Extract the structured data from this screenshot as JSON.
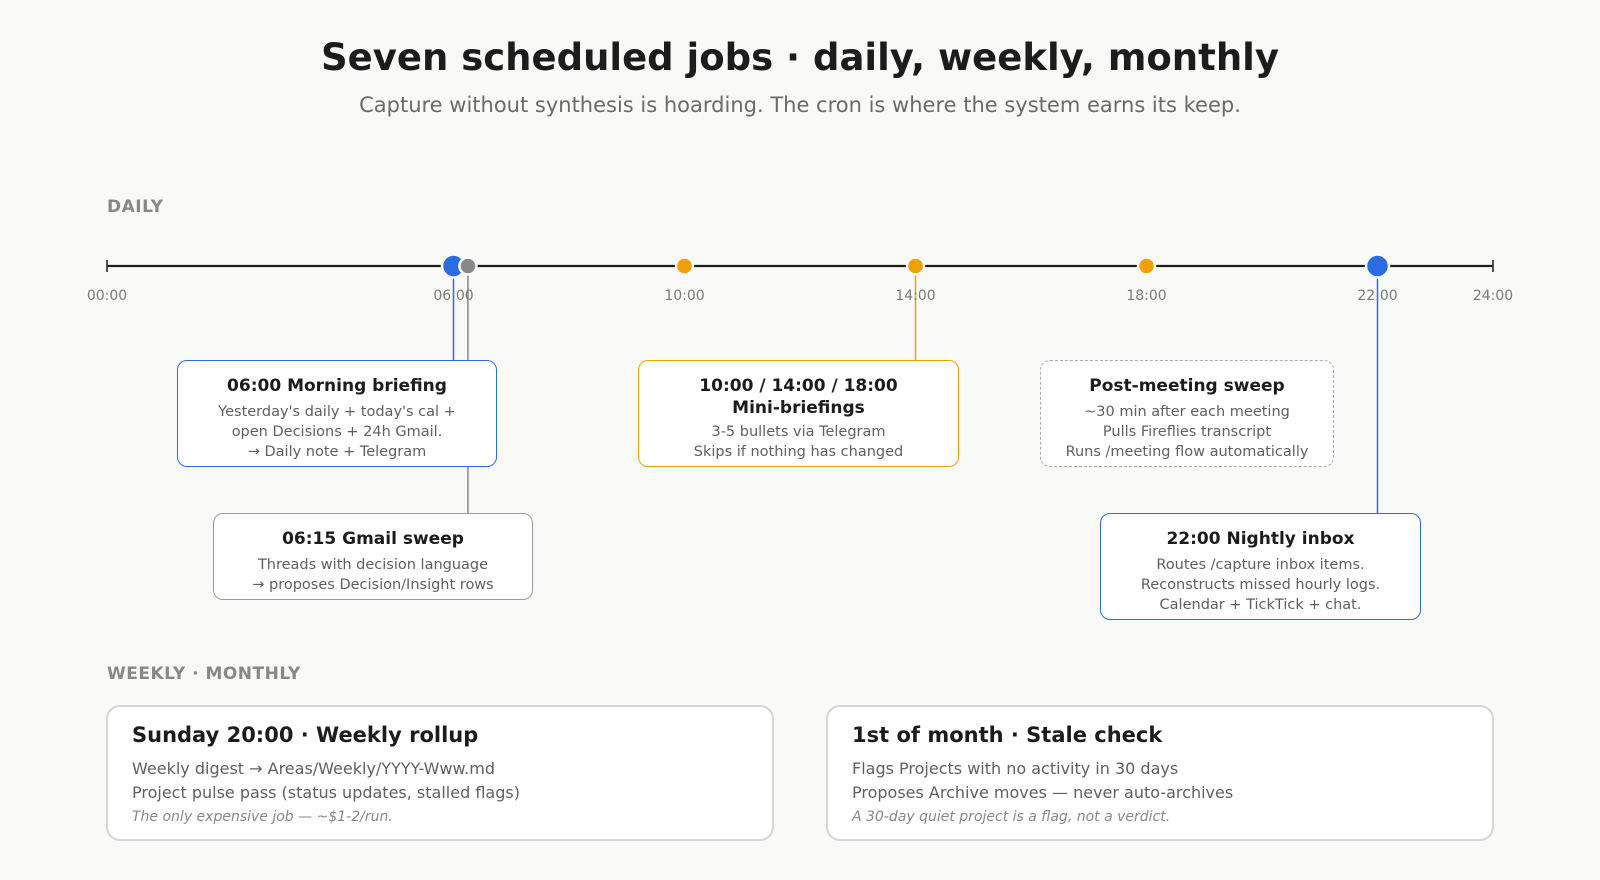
{
  "title": "Seven scheduled jobs · daily, weekly, monthly",
  "subtitle": "Capture without synthesis is hoarding. The cron is where the system earns its keep.",
  "sections": {
    "daily": "DAILY",
    "weekly_monthly": "WEEKLY · MONTHLY"
  },
  "colors": {
    "blue": "#2b6de0",
    "orange": "#f0a000",
    "gray": "#888888",
    "dashed": "#aaaaaa"
  },
  "timeline": {
    "ticks": [
      "00:00",
      "06:00",
      "10:00",
      "14:00",
      "18:00",
      "22:00",
      "24:00"
    ],
    "markers": [
      {
        "time": "06:00",
        "kind": "major",
        "color": "blue"
      },
      {
        "time": "06:15",
        "kind": "minor",
        "color": "gray"
      },
      {
        "time": "10:00",
        "kind": "minor",
        "color": "orange"
      },
      {
        "time": "14:00",
        "kind": "minor",
        "color": "orange"
      },
      {
        "time": "18:00",
        "kind": "minor",
        "color": "orange"
      },
      {
        "time": "22:00",
        "kind": "major",
        "color": "blue"
      }
    ]
  },
  "daily_jobs": [
    {
      "title": "06:00 Morning briefing",
      "lines": [
        "Yesterday's daily + today's cal +",
        "open Decisions + 24h Gmail.",
        "→ Daily note + Telegram"
      ]
    },
    {
      "title": "06:15 Gmail sweep",
      "lines": [
        "Threads with decision language",
        "→ proposes Decision/Insight rows"
      ]
    },
    {
      "title": "10:00 / 14:00 / 18:00\nMini-briefings",
      "lines": [
        "3-5 bullets via Telegram",
        "Skips if nothing has changed"
      ]
    },
    {
      "title": "Post-meeting sweep",
      "lines": [
        "~30 min after each meeting",
        "Pulls Fireflies transcript",
        "Runs /meeting flow automatically"
      ]
    },
    {
      "title": "22:00 Nightly inbox",
      "lines": [
        "Routes /capture inbox items.",
        "Reconstructs missed hourly logs.",
        "Calendar + TickTick + chat."
      ]
    }
  ],
  "periodic_jobs": [
    {
      "title": "Sunday 20:00 · Weekly rollup",
      "lines": [
        "Weekly digest → Areas/Weekly/YYYY-Www.md",
        "Project pulse pass (status updates, stalled flags)"
      ],
      "note": "The only expensive job — ~$1-2/run."
    },
    {
      "title": "1st of month · Stale check",
      "lines": [
        "Flags Projects with no activity in 30 days",
        "Proposes Archive moves — never auto-archives"
      ],
      "note": "A 30-day quiet project is a flag, not a verdict."
    }
  ]
}
